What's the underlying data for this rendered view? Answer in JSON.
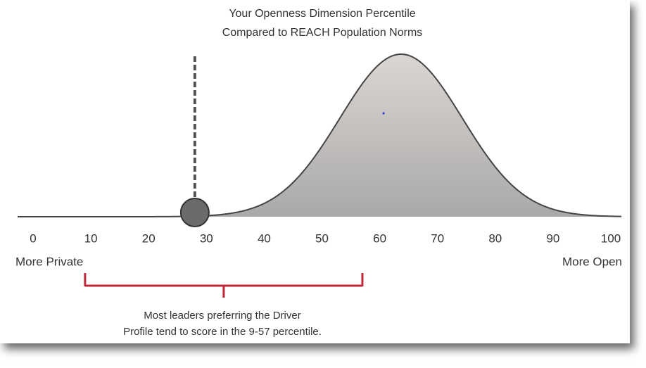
{
  "chart_data": {
    "type": "distribution",
    "title_lines": [
      "Your Openness Dimension Percentile",
      "Compared to REACH Population Norms"
    ],
    "xlim": [
      0,
      100
    ],
    "xticks": [
      0,
      10,
      20,
      30,
      40,
      50,
      60,
      70,
      80,
      90,
      100
    ],
    "left_label": "More Private",
    "right_label": "More Open",
    "marker": 28,
    "range": [
      9,
      57
    ],
    "caption_lines": [
      "Most leaders preferring the Driver",
      "Profile tend to score in the 9-57 percentile."
    ],
    "bracket_color": "#c0283a",
    "marker_color": "#6b6b6b"
  }
}
